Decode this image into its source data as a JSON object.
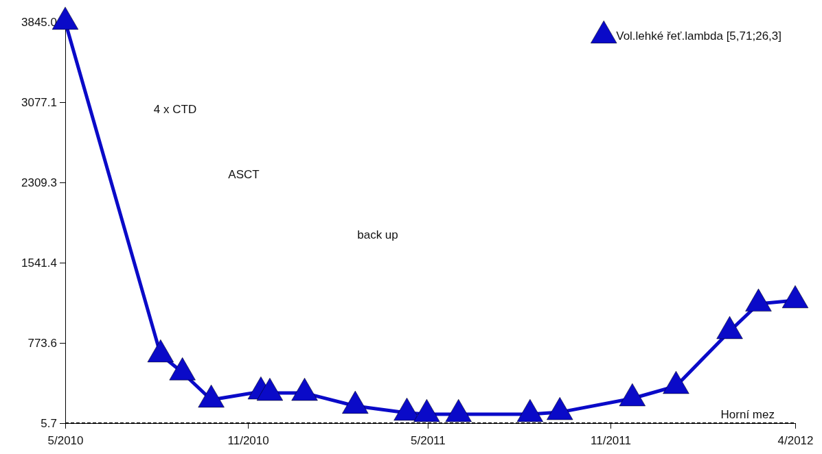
{
  "chart_data": {
    "type": "line",
    "x": [
      "2010-05-01",
      "2010-08-05",
      "2010-08-27",
      "2010-09-25",
      "2010-11-14",
      "2010-11-23",
      "2010-12-28",
      "2011-02-17",
      "2011-04-10",
      "2011-04-30",
      "2011-06-01",
      "2011-08-12",
      "2011-09-11",
      "2011-11-23",
      "2012-01-06",
      "2012-02-29",
      "2012-03-29",
      "2012-05-05"
    ],
    "series": [
      {
        "name": "Vol.lehké řeť.lambda [5,71;26,3]",
        "color": "#0a0ac8",
        "values": [
          3845,
          662,
          490,
          229,
          307,
          294,
          294,
          170,
          104,
          91,
          91,
          91,
          110,
          242,
          360,
          885,
          1148,
          1180
        ]
      }
    ],
    "xlim": [
      "2010-05-01",
      "2012-05-05"
    ],
    "xticks": [
      {
        "value": "2010-05-01",
        "label": "5/2010"
      },
      {
        "value": "2010-11-01",
        "label": "11/2010"
      },
      {
        "value": "2011-05-01",
        "label": "5/2011"
      },
      {
        "value": "2011-11-01",
        "label": "11/2011"
      },
      {
        "value": "2012-05-05",
        "label": "4/2012"
      }
    ],
    "ylim": [
      5.7,
      3845
    ],
    "yticks": [
      5.7,
      773.6,
      1541.4,
      2309.3,
      3077.1,
      {
        "value": 3845,
        "label": "3845.0"
      }
    ],
    "ref_lines": [
      {
        "axis": "y",
        "value": 5.7,
        "label": "Horní mez",
        "color": "#000000",
        "line_style": "dashed"
      }
    ],
    "annotations": [
      "4 x CTD",
      "ASCT",
      "back up"
    ],
    "marker": "triangle",
    "line_style": "solid",
    "legend": "top right",
    "grid": false
  }
}
